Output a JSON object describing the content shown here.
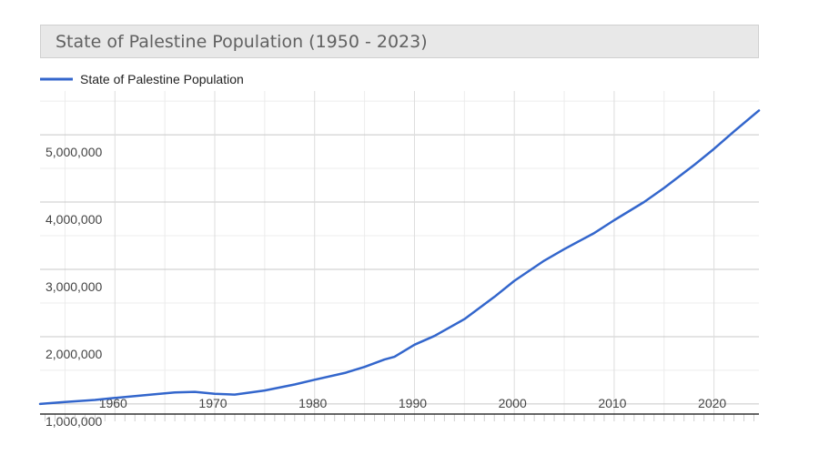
{
  "chart_data": {
    "type": "line",
    "title": "State of Palestine Population (1950 - 2023)",
    "xlabel": "",
    "ylabel": "",
    "xlim": [
      1952.5,
      2024.5
    ],
    "ylim": [
      850000,
      5650000
    ],
    "x_ticks": [
      1960,
      1970,
      1980,
      1990,
      2000,
      2010,
      2020
    ],
    "x_tick_labels": [
      "1960",
      "1970",
      "1980",
      "1990",
      "2000",
      "2010",
      "2020"
    ],
    "y_ticks": [
      1000000,
      2000000,
      3000000,
      4000000,
      5000000
    ],
    "y_tick_labels": [
      "1,000,000",
      "2,000,000",
      "3,000,000",
      "4,000,000",
      "5,000,000"
    ],
    "grid": true,
    "legend_position": "top-left",
    "series": [
      {
        "name": "State of Palestine Population",
        "color": "#3366cc",
        "x": [
          1952.5,
          1955,
          1958,
          1960,
          1963,
          1966,
          1968,
          1970,
          1972,
          1975,
          1978,
          1980,
          1983,
          1985,
          1987,
          1988,
          1990,
          1992,
          1995,
          1998,
          2000,
          2003,
          2005,
          2008,
          2010,
          2013,
          2015,
          2018,
          2020,
          2022,
          2024.5
        ],
        "values": [
          1000000,
          1030000,
          1060000,
          1090000,
          1130000,
          1170000,
          1180000,
          1150000,
          1140000,
          1200000,
          1290000,
          1360000,
          1460000,
          1550000,
          1660000,
          1700000,
          1880000,
          2010000,
          2260000,
          2590000,
          2830000,
          3130000,
          3300000,
          3540000,
          3730000,
          4000000,
          4210000,
          4550000,
          4790000,
          5050000,
          5360000
        ]
      }
    ]
  }
}
